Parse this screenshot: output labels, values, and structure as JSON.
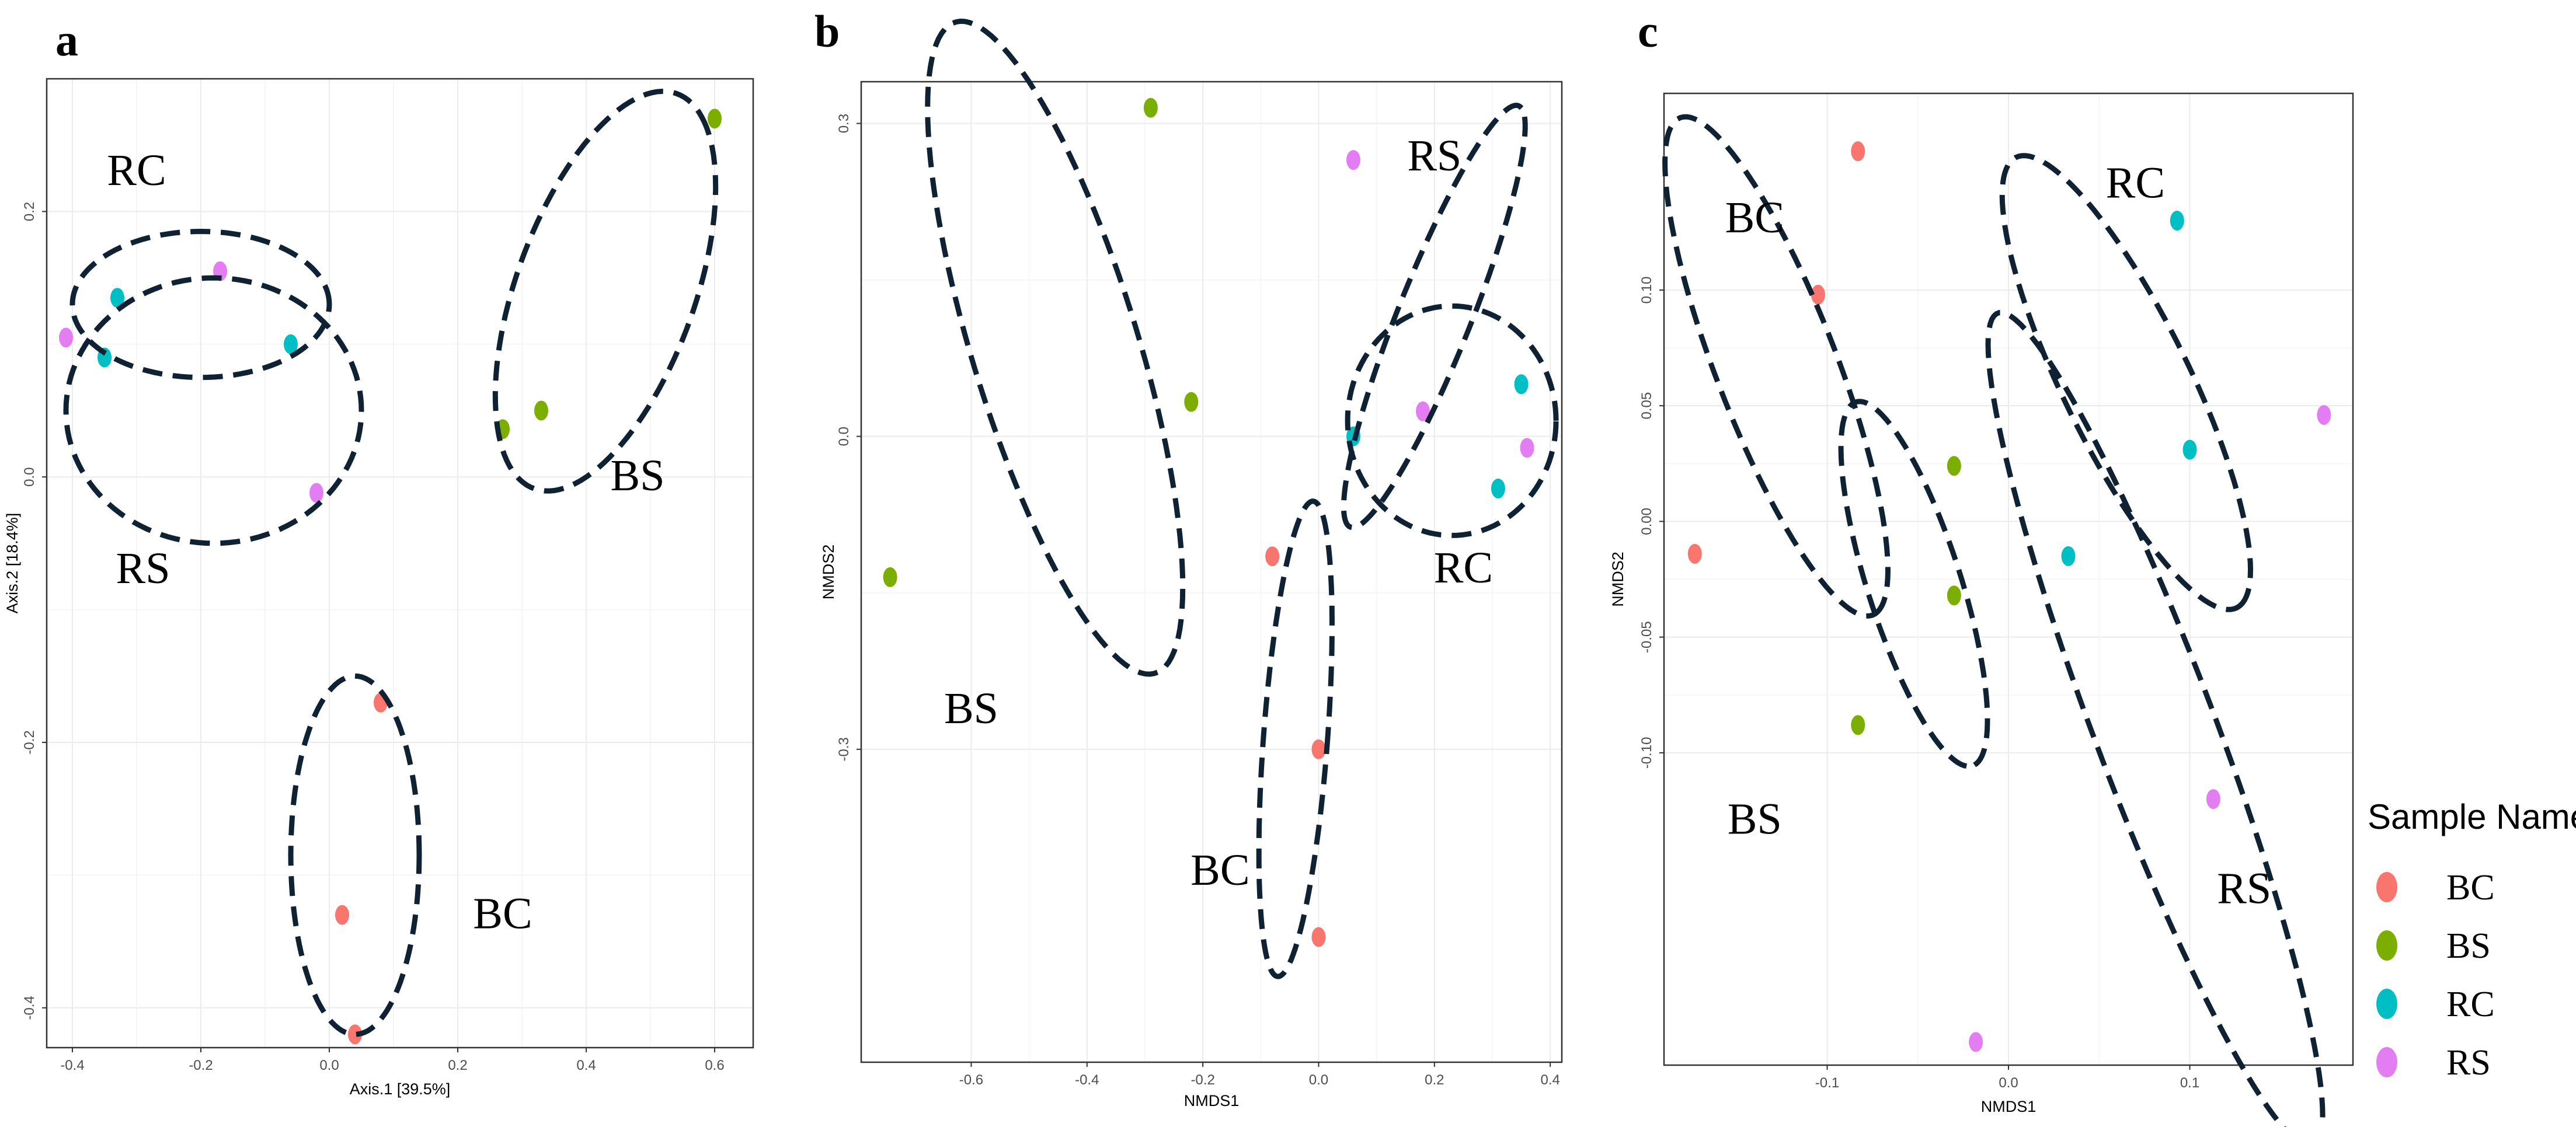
{
  "chart_data": [
    {
      "type": "scatter",
      "panel": "a",
      "title": "",
      "xlabel": "Axis.1  [39.5%]",
      "ylabel": "Axis.2  [18.4%]",
      "xlim": [
        -0.44,
        0.66
      ],
      "ylim": [
        -0.43,
        0.3
      ],
      "xticks": [
        -0.4,
        -0.2,
        0.0,
        0.2,
        0.4,
        0.6
      ],
      "yticks": [
        -0.4,
        -0.2,
        0.0,
        0.2
      ],
      "xtick_labels": [
        "-0.4",
        "-0.2",
        "0.0",
        "0.2",
        "0.4",
        "0.6"
      ],
      "ytick_labels": [
        "-0.4",
        "-0.2",
        "0.0",
        "0.2"
      ],
      "points": [
        {
          "group": "BS",
          "x": 0.6,
          "y": 0.27
        },
        {
          "group": "BS",
          "x": 0.33,
          "y": 0.05
        },
        {
          "group": "BS",
          "x": 0.27,
          "y": 0.036
        },
        {
          "group": "RC",
          "x": -0.33,
          "y": 0.135
        },
        {
          "group": "RC",
          "x": -0.35,
          "y": 0.09
        },
        {
          "group": "RC",
          "x": -0.06,
          "y": 0.1
        },
        {
          "group": "RS",
          "x": -0.41,
          "y": 0.105
        },
        {
          "group": "RS",
          "x": -0.17,
          "y": 0.155
        },
        {
          "group": "RS",
          "x": -0.02,
          "y": -0.012
        },
        {
          "group": "BC",
          "x": 0.08,
          "y": -0.17
        },
        {
          "group": "BC",
          "x": 0.02,
          "y": -0.33
        },
        {
          "group": "BC",
          "x": 0.04,
          "y": -0.42
        }
      ],
      "ellipses": [
        {
          "cx": 0.43,
          "cy": 0.14,
          "rx": 0.2,
          "ry": 0.11,
          "angle": 38
        },
        {
          "cx": -0.2,
          "cy": 0.13,
          "rx": 0.2,
          "ry": 0.055,
          "angle": 0
        },
        {
          "cx": -0.18,
          "cy": 0.05,
          "rx": 0.23,
          "ry": 0.1,
          "angle": 0
        },
        {
          "cx": 0.04,
          "cy": -0.285,
          "rx": 0.1,
          "ry": 0.135,
          "angle": 0
        }
      ],
      "labels": [
        {
          "text": "RC",
          "x": -0.3,
          "y": 0.22
        },
        {
          "text": "RS",
          "x": -0.29,
          "y": -0.08
        },
        {
          "text": "BS",
          "x": 0.48,
          "y": -0.01
        },
        {
          "text": "BC",
          "x": 0.27,
          "y": -0.34
        }
      ]
    },
    {
      "type": "scatter",
      "panel": "b",
      "title": "",
      "xlabel": "NMDS1",
      "ylabel": "NMDS2",
      "xlim": [
        -0.79,
        0.42
      ],
      "ylim": [
        -0.6,
        0.34
      ],
      "xticks": [
        -0.6,
        -0.4,
        -0.2,
        0.0,
        0.2,
        0.4
      ],
      "yticks": [
        -0.3,
        0.0,
        0.3
      ],
      "xtick_labels": [
        "-0.6",
        "-0.4",
        "-0.2",
        "0.0",
        "0.2",
        "0.4"
      ],
      "ytick_labels": [
        "-0.3",
        "0.0",
        "0.3"
      ],
      "points": [
        {
          "group": "BS",
          "x": -0.29,
          "y": 0.315
        },
        {
          "group": "BS",
          "x": -0.22,
          "y": 0.033
        },
        {
          "group": "BS",
          "x": -0.74,
          "y": -0.135
        },
        {
          "group": "RS",
          "x": 0.06,
          "y": 0.265
        },
        {
          "group": "RS",
          "x": 0.18,
          "y": 0.024
        },
        {
          "group": "RS",
          "x": 0.36,
          "y": -0.011
        },
        {
          "group": "RC",
          "x": 0.35,
          "y": 0.05
        },
        {
          "group": "RC",
          "x": 0.06,
          "y": 0.0
        },
        {
          "group": "RC",
          "x": 0.31,
          "y": -0.05
        },
        {
          "group": "BC",
          "x": -0.08,
          "y": -0.115
        },
        {
          "group": "BC",
          "x": 0.0,
          "y": -0.3
        },
        {
          "group": "BC",
          "x": 0.0,
          "y": -0.48
        }
      ],
      "ellipses": [
        {
          "cx": -0.455,
          "cy": 0.085,
          "rx": 0.36,
          "ry": 0.13,
          "angle": -58
        },
        {
          "cx": 0.2,
          "cy": 0.115,
          "rx": 0.25,
          "ry": 0.055,
          "angle": 53
        },
        {
          "cx": 0.23,
          "cy": 0.015,
          "rx": 0.18,
          "ry": 0.11,
          "angle": 0
        },
        {
          "cx": -0.04,
          "cy": -0.29,
          "rx": 0.055,
          "ry": 0.23,
          "angle": -8
        }
      ],
      "labels": [
        {
          "text": "RS",
          "x": 0.2,
          "y": 0.255
        },
        {
          "text": "RC",
          "x": 0.25,
          "y": -0.14
        },
        {
          "text": "BS",
          "x": -0.6,
          "y": -0.275
        },
        {
          "text": "BC",
          "x": -0.17,
          "y": -0.43
        }
      ]
    },
    {
      "type": "scatter",
      "panel": "c",
      "title": "",
      "xlabel": "NMDS1",
      "ylabel": "NMDS2",
      "xlim": [
        -0.19,
        0.19
      ],
      "ylim": [
        -0.235,
        0.185
      ],
      "xticks": [
        -0.1,
        0.0,
        0.1
      ],
      "yticks": [
        -0.1,
        -0.05,
        0.0,
        0.05,
        0.1
      ],
      "xtick_labels": [
        "-0.1",
        "0.0",
        "0.1"
      ],
      "ytick_labels": [
        "-0.10",
        "-0.05",
        "0.00",
        "0.05",
        "0.10"
      ],
      "points": [
        {
          "group": "BC",
          "x": -0.083,
          "y": 0.16
        },
        {
          "group": "BC",
          "x": -0.105,
          "y": 0.098
        },
        {
          "group": "BC",
          "x": -0.173,
          "y": -0.014
        },
        {
          "group": "RC",
          "x": 0.093,
          "y": 0.13
        },
        {
          "group": "RC",
          "x": 0.1,
          "y": 0.031
        },
        {
          "group": "RC",
          "x": 0.033,
          "y": -0.015
        },
        {
          "group": "BS",
          "x": -0.03,
          "y": 0.024
        },
        {
          "group": "BS",
          "x": -0.03,
          "y": -0.032
        },
        {
          "group": "BS",
          "x": -0.083,
          "y": -0.088
        },
        {
          "group": "RS",
          "x": 0.174,
          "y": 0.046
        },
        {
          "group": "RS",
          "x": 0.113,
          "y": -0.12
        },
        {
          "group": "RS",
          "x": -0.018,
          "y": -0.225
        }
      ],
      "ellipses": [
        {
          "cx": -0.128,
          "cy": 0.067,
          "rx": 0.12,
          "ry": 0.032,
          "angle": -63
        },
        {
          "cx": 0.065,
          "cy": 0.06,
          "rx": 0.115,
          "ry": 0.033,
          "angle": -57
        },
        {
          "cx": -0.052,
          "cy": -0.027,
          "rx": 0.085,
          "ry": 0.025,
          "angle": -67
        },
        {
          "cx": 0.081,
          "cy": -0.09,
          "rx": 0.2,
          "ry": 0.032,
          "angle": -64
        }
      ],
      "labels": [
        {
          "text": "BC",
          "x": -0.14,
          "y": 0.125
        },
        {
          "text": "RC",
          "x": 0.07,
          "y": 0.14
        },
        {
          "text": "BS",
          "x": -0.14,
          "y": -0.135
        },
        {
          "text": "RS",
          "x": 0.13,
          "y": -0.165
        }
      ]
    }
  ],
  "legend": {
    "title": "Sample Name",
    "items": [
      {
        "label": "BC",
        "color": "#F8766D"
      },
      {
        "label": "BS",
        "color": "#7CAE00"
      },
      {
        "label": "RC",
        "color": "#00BFC4"
      },
      {
        "label": "RS",
        "color": "#E37EF2"
      }
    ]
  },
  "colors": {
    "BC": "#F8766D",
    "BS": "#7CAE00",
    "RC": "#00BFC4",
    "RS": "#E37EF2",
    "ellipse": "#0f2233"
  }
}
